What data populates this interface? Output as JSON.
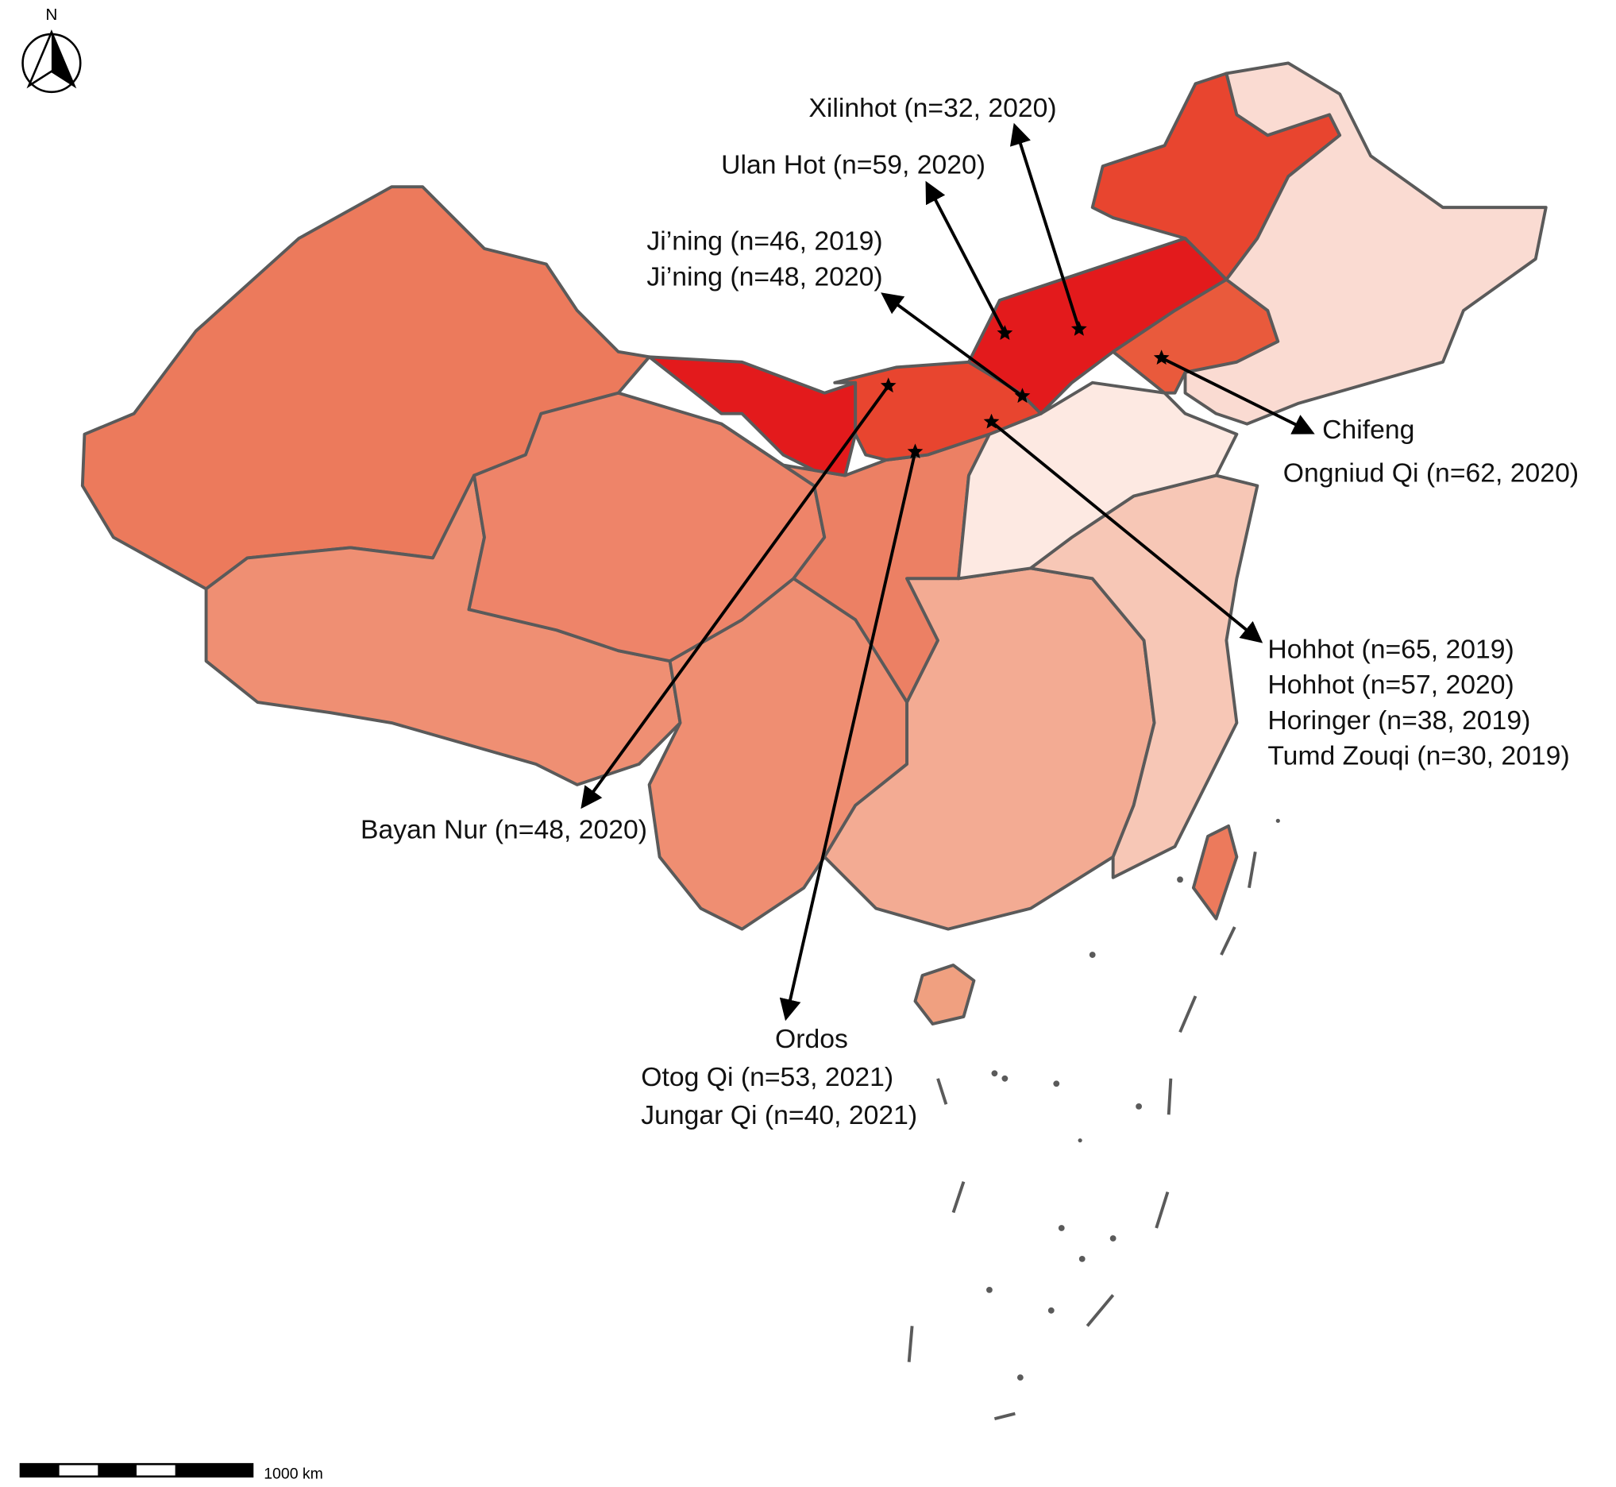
{
  "north_label": "N",
  "sites": [
    {
      "lines": [
        "Xilinhot (n=32, 2020)"
      ]
    },
    {
      "lines": [
        "Ulan Hot (n=59, 2020)"
      ]
    },
    {
      "lines": [
        "Ji’ning (n=46, 2019)",
        "Ji’ning (n=48, 2020)"
      ]
    },
    {
      "lines": [
        "Chifeng",
        "Ongniud Qi (n=62, 2020)"
      ]
    },
    {
      "lines": [
        "Hohhot (n=65, 2019)",
        "Hohhot (n=57, 2020)",
        "Horinger (n=38, 2019)",
        "Tumd Zouqi (n=30, 2019)"
      ]
    },
    {
      "lines": [
        "Bayan Nur (n=48, 2020)"
      ]
    },
    {
      "lines": [
        "Ordos",
        "Otog Qi (n=53, 2021)",
        "Jungar Qi (n=40, 2021)"
      ]
    }
  ],
  "scale_bar": {
    "label": "1000 km"
  }
}
